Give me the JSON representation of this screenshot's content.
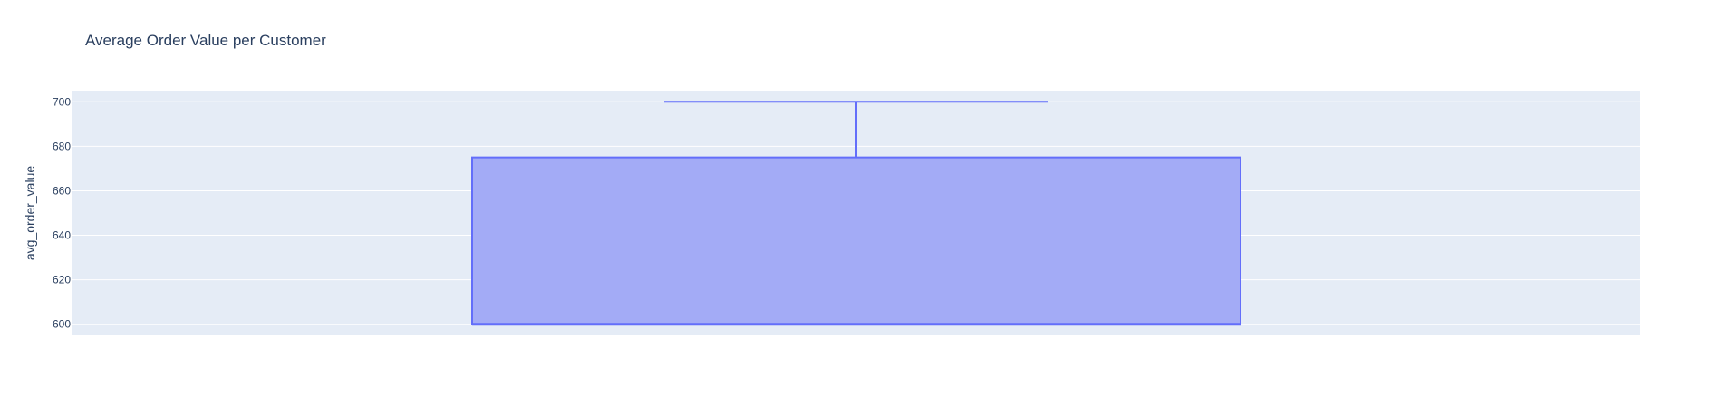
{
  "chart_data": {
    "type": "box",
    "title": "Average Order Value per Customer",
    "xlabel": "",
    "ylabel": "avg_order_value",
    "ylim": [
      595,
      705
    ],
    "yticks": [
      600,
      620,
      640,
      660,
      680,
      700
    ],
    "grid": true,
    "series": [
      {
        "min": 600,
        "q1": 600,
        "median": 600,
        "q3": 675,
        "max": 700
      }
    ]
  },
  "colors": {
    "plot_background": "#e5ecf6",
    "grid": "#ffffff",
    "box_fill": "#a3abf6",
    "box_line": "#636efa",
    "text": "#2a3f5f"
  }
}
